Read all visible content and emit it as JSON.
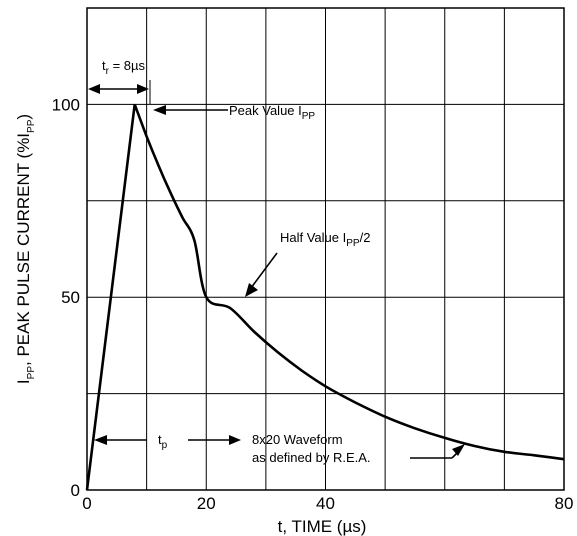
{
  "chart_data": {
    "type": "line",
    "xlabel": "t, TIME (µs)",
    "ylabel": {
      "main": "I",
      "sub": "PP",
      "rest": ", PEAK PULSE CURRENT (%I",
      "sub2": "PP",
      "end": ")"
    },
    "xlim": [
      0,
      80
    ],
    "ylim": [
      0,
      125
    ],
    "x_ticks": [
      {
        "value": 0,
        "label": "0"
      },
      {
        "value": 20,
        "label": "20"
      },
      {
        "value": 40,
        "label": "40"
      },
      {
        "value": 60,
        "label": ""
      },
      {
        "value": 80,
        "label": "80"
      }
    ],
    "x_grid": [
      10,
      20,
      30,
      40,
      50,
      60,
      70
    ],
    "y_ticks": [
      {
        "value": 0,
        "label": "0"
      },
      {
        "value": 50,
        "label": "50"
      },
      {
        "value": 100,
        "label": "100"
      }
    ],
    "y_grid": [
      25,
      50,
      75,
      100
    ],
    "grid": true,
    "series": [
      {
        "x": [
          0,
          8,
          10,
          12,
          14,
          16,
          18,
          20,
          24,
          28,
          32,
          36,
          40,
          45,
          50,
          55,
          60,
          65,
          70,
          75,
          80
        ],
        "y": [
          0,
          100,
          91.7,
          84.1,
          77.1,
          70.7,
          64.8,
          50,
          47.2,
          41.1,
          35.7,
          31.0,
          26.9,
          22.7,
          19.0,
          16.0,
          13.5,
          11.4,
          9.9,
          9.0,
          8.0
        ]
      }
    ],
    "annotations": {
      "rise_time": {
        "main": "t",
        "sub": "r",
        "rest": " = 8µs"
      },
      "peak": {
        "main": "Peak Value I",
        "sub": "PP"
      },
      "half": {
        "main": "Half Value I",
        "sub": "PP",
        "rest": "/2"
      },
      "pulse_width": {
        "main": "t",
        "sub": "p"
      },
      "waveform_line1": "8x20 Waveform",
      "waveform_line2": "as defined by R.E.A."
    }
  }
}
